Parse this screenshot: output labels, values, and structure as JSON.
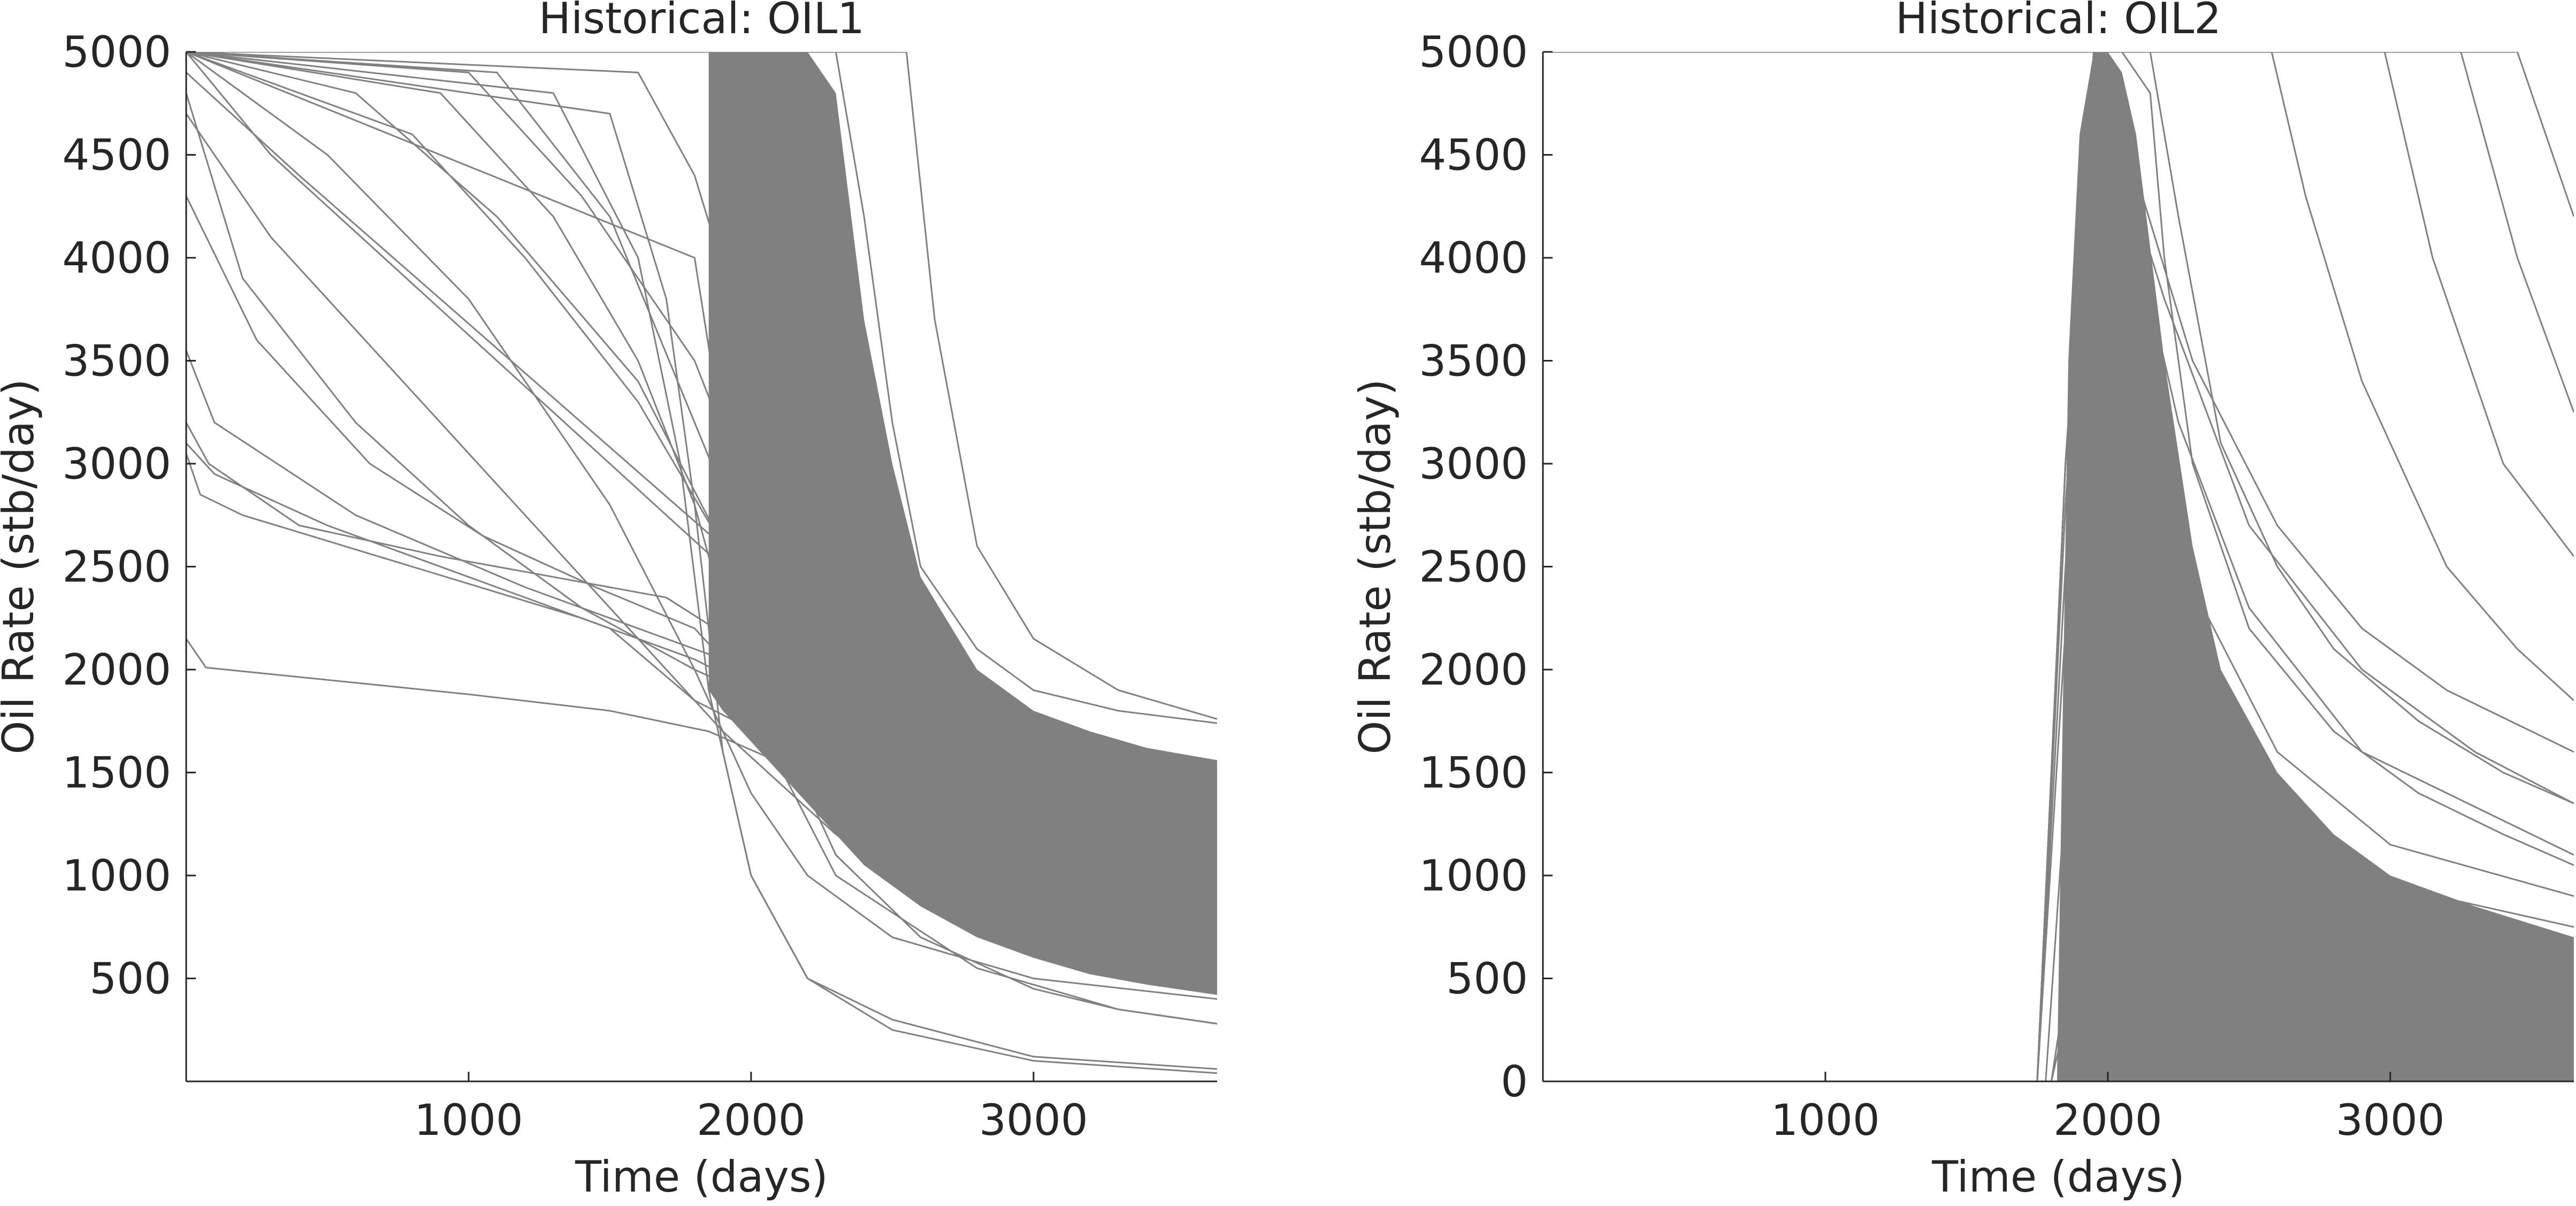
{
  "chart_data": [
    {
      "type": "line",
      "title": "Historical: OIL1",
      "xlabel": "Time (days)",
      "ylabel": "Oil Rate (stb/day)",
      "xlim": [
        0,
        3650
      ],
      "ylim": [
        0,
        5000
      ],
      "xticks": [
        1000,
        2000,
        3000
      ],
      "yticks": [
        500,
        1000,
        1500,
        2000,
        2500,
        3000,
        3500,
        4000,
        4500,
        5000
      ],
      "line_color": "#808080",
      "grid": false,
      "legend": "none",
      "dense_band": {
        "x": [
          1850,
          1900,
          2000,
          2100,
          2200,
          2300,
          2400,
          2500,
          2600,
          2800,
          3000,
          3200,
          3400,
          3650
        ],
        "upper": [
          5000,
          5000,
          5000,
          5000,
          5000,
          4800,
          3700,
          3000,
          2450,
          2000,
          1800,
          1700,
          1620,
          1560
        ],
        "lower": [
          1900,
          1800,
          1650,
          1500,
          1350,
          1200,
          1050,
          950,
          850,
          700,
          600,
          520,
          470,
          420
        ]
      },
      "series": [
        {
          "x": [
            0,
            2300,
            2400,
            2500,
            2600,
            2800,
            3000,
            3300,
            3650
          ],
          "values": [
            5000,
            5000,
            4200,
            3200,
            2500,
            2100,
            1900,
            1800,
            1740
          ]
        },
        {
          "x": [
            0,
            2550,
            2650,
            2800,
            3000,
            3300,
            3650
          ],
          "values": [
            5000,
            5000,
            3700,
            2600,
            2150,
            1900,
            1760
          ]
        },
        {
          "x": [
            0,
            1800,
            1950,
            2100,
            2300,
            2600,
            3000,
            3300,
            3650
          ],
          "values": [
            5000,
            4000,
            2700,
            1700,
            1100,
            700,
            450,
            350,
            280
          ]
        },
        {
          "x": [
            0,
            300,
            700,
            1100,
            1500,
            1900,
            2300,
            2700,
            3100,
            3650
          ],
          "values": [
            5000,
            4500,
            4000,
            3500,
            3000,
            2500,
            2000,
            1500,
            1000,
            500
          ]
        },
        {
          "x": [
            0,
            400,
            900,
            1400,
            1900,
            2400,
            2900,
            3400,
            3650
          ],
          "values": [
            4900,
            4400,
            3800,
            3200,
            2600,
            2000,
            1400,
            800,
            600
          ]
        },
        {
          "x": [
            0,
            500,
            1000,
            1500,
            1800,
            2000,
            2200,
            2500,
            3000,
            3650
          ],
          "values": [
            5000,
            4500,
            3800,
            2800,
            2000,
            1400,
            1000,
            700,
            500,
            400
          ]
        },
        {
          "x": [
            0,
            200,
            600,
            1000,
            1400,
            1800,
            2200,
            2600,
            3000,
            3650
          ],
          "values": [
            4800,
            3900,
            3200,
            2700,
            2300,
            2000,
            1750,
            1500,
            1300,
            1100
          ]
        },
        {
          "x": [
            0,
            800,
            1200,
            1600,
            1900,
            2100,
            2400,
            2800,
            3200,
            3650
          ],
          "values": [
            5000,
            4600,
            4000,
            3300,
            2600,
            1900,
            1200,
            800,
            600,
            500
          ]
        },
        {
          "x": [
            0,
            100,
            600,
            1200,
            1800,
            2400,
            3000,
            3650
          ],
          "values": [
            3550,
            3200,
            2750,
            2400,
            2100,
            1800,
            1550,
            1350
          ]
        },
        {
          "x": [
            0,
            100,
            500,
            1000,
            1500,
            1800,
            2300,
            3000,
            3650
          ],
          "values": [
            3100,
            2950,
            2700,
            2450,
            2200,
            1850,
            1500,
            1200,
            1000
          ]
        },
        {
          "x": [
            0,
            50,
            200,
            800,
            1400,
            1800,
            2300,
            3000,
            3650
          ],
          "values": [
            3050,
            2850,
            2750,
            2500,
            2250,
            2050,
            1700,
            1400,
            1200
          ]
        },
        {
          "x": [
            0,
            80,
            400,
            900,
            1300,
            1700,
            2100,
            2600,
            3100,
            3650
          ],
          "values": [
            3200,
            3000,
            2700,
            2550,
            2450,
            2350,
            2000,
            1500,
            1150,
            950
          ]
        },
        {
          "x": [
            0,
            70,
            500,
            1000,
            1500,
            1850,
            2100,
            2600,
            3000,
            3650
          ],
          "values": [
            2150,
            2010,
            1950,
            1880,
            1800,
            1700,
            1550,
            1250,
            1050,
            850
          ]
        },
        {
          "x": [
            0,
            300,
            700,
            1100,
            1500,
            1900,
            2300,
            2700,
            3100,
            3650
          ],
          "values": [
            4700,
            4100,
            3500,
            2900,
            2300,
            1700,
            1200,
            850,
            650,
            500
          ]
        },
        {
          "x": [
            0,
            250,
            650,
            1050,
            1450,
            1800,
            2000,
            2300,
            2700,
            3200,
            3650
          ],
          "values": [
            4300,
            3600,
            3000,
            2650,
            2400,
            2200,
            1900,
            1500,
            1100,
            800,
            650
          ]
        },
        {
          "x": [
            0,
            900,
            1300,
            1600,
            1800,
            2000,
            2300,
            2800,
            3300,
            3650
          ],
          "values": [
            5000,
            4800,
            4200,
            3500,
            2800,
            1800,
            1000,
            550,
            350,
            280
          ]
        },
        {
          "x": [
            0,
            1300,
            1600,
            1750,
            1850,
            2000,
            2200,
            2500,
            3000,
            3650
          ],
          "values": [
            5000,
            4800,
            4000,
            3000,
            1900,
            1000,
            500,
            300,
            120,
            60
          ]
        },
        {
          "x": [
            0,
            1500,
            1700,
            1800,
            1900,
            2000,
            2200,
            2500,
            3000,
            3650
          ],
          "values": [
            5000,
            4700,
            3800,
            2800,
            1600,
            1000,
            500,
            250,
            100,
            40
          ]
        },
        {
          "x": [
            0,
            600,
            1100,
            1600,
            1900,
            2200,
            2600,
            3000,
            3650
          ],
          "values": [
            5000,
            4800,
            4200,
            3400,
            2600,
            1800,
            1200,
            900,
            700
          ]
        },
        {
          "x": [
            0,
            1000,
            1400,
            1800,
            2000,
            2200,
            2500,
            3000,
            3650
          ],
          "values": [
            5000,
            4900,
            4300,
            3500,
            2800,
            2000,
            1300,
            800,
            550
          ]
        },
        {
          "x": [
            0,
            1100,
            1500,
            1800,
            2100,
            2400,
            2800,
            3300,
            3650
          ],
          "values": [
            5000,
            4900,
            4200,
            3200,
            2200,
            1500,
            1000,
            700,
            550
          ]
        },
        {
          "x": [
            0,
            1600,
            1800,
            2000,
            2200,
            2400,
            2700,
            3100,
            3650
          ],
          "values": [
            5000,
            4900,
            4400,
            3500,
            2500,
            1700,
            1100,
            750,
            500
          ]
        }
      ]
    },
    {
      "type": "line",
      "title": "Historical: OIL2",
      "xlabel": "Time (days)",
      "ylabel": "Oil Rate (stb/day)",
      "xlim": [
        0,
        3650
      ],
      "ylim": [
        0,
        5000
      ],
      "xticks": [
        1000,
        2000,
        3000
      ],
      "yticks": [
        0,
        500,
        1000,
        1500,
        2000,
        2500,
        3000,
        3500,
        4000,
        4500,
        5000
      ],
      "line_color": "#808080",
      "grid": false,
      "legend": "none",
      "dense_band": {
        "x": [
          1820,
          1860,
          1900,
          1950,
          2000,
          2050,
          2100,
          2200,
          2300,
          2400,
          2600,
          2800,
          3000,
          3300,
          3650
        ],
        "upper": [
          0,
          3500,
          4600,
          5000,
          5000,
          4900,
          4600,
          3500,
          2600,
          2000,
          1500,
          1200,
          1000,
          850,
          700
        ],
        "lower": [
          0,
          0,
          0,
          0,
          0,
          0,
          0,
          0,
          0,
          0,
          0,
          0,
          0,
          0,
          0
        ]
      },
      "series": [
        {
          "x": [
            0,
            1750,
            1850,
            1950,
            2050,
            2150,
            2200,
            2300,
            2500,
            2800,
            3100,
            3400,
            3650
          ],
          "values": [
            0,
            0,
            3000,
            5000,
            5000,
            4800,
            4000,
            3000,
            2200,
            1700,
            1400,
            1200,
            1050
          ]
        },
        {
          "x": [
            0,
            1750,
            1850,
            1950,
            2150,
            2250,
            2400,
            2600,
            2800,
            3100,
            3400,
            3650
          ],
          "values": [
            0,
            0,
            3000,
            5000,
            5000,
            4200,
            3100,
            2500,
            2100,
            1750,
            1500,
            1350
          ]
        },
        {
          "x": [
            0,
            2580,
            2700,
            2900,
            3200,
            3450,
            3650
          ],
          "values": [
            5000,
            5000,
            4300,
            3400,
            2500,
            2100,
            1850
          ]
        },
        {
          "x": [
            0,
            2980,
            3150,
            3400,
            3650
          ],
          "values": [
            5000,
            5000,
            4000,
            3000,
            2550
          ]
        },
        {
          "x": [
            0,
            3250,
            3450,
            3650
          ],
          "values": [
            5000,
            5000,
            4000,
            3250
          ]
        },
        {
          "x": [
            0,
            3450,
            3650
          ],
          "values": [
            5000,
            5000,
            4200
          ]
        },
        {
          "x": [
            0,
            1750,
            1850,
            1950,
            2100,
            2300,
            2600,
            2900,
            3200,
            3650
          ],
          "values": [
            0,
            0,
            3000,
            5000,
            4400,
            3500,
            2700,
            2200,
            1900,
            1600
          ]
        },
        {
          "x": [
            0,
            1750,
            1850,
            1950,
            2100,
            2300,
            2600,
            3000,
            3650
          ],
          "values": [
            0,
            0,
            2500,
            4600,
            3600,
            2400,
            1600,
            1150,
            900
          ]
        },
        {
          "x": [
            0,
            1750,
            1850,
            1950,
            2050,
            2250,
            2600,
            3000,
            3650
          ],
          "values": [
            0,
            0,
            2200,
            4200,
            3200,
            2000,
            1300,
            950,
            750
          ]
        },
        {
          "x": [
            0,
            1780,
            1850,
            1950,
            2100,
            2400,
            2900,
            3650
          ],
          "values": [
            0,
            0,
            1400,
            2400,
            1800,
            1200,
            800,
            600
          ]
        },
        {
          "x": [
            0,
            1800,
            1900,
            2000,
            2200,
            2600,
            3100,
            3650
          ],
          "values": [
            0,
            0,
            900,
            1500,
            1000,
            600,
            400,
            300
          ]
        },
        {
          "x": [
            0,
            1800,
            1900,
            2000,
            2300,
            2800,
            3650
          ],
          "values": [
            0,
            0,
            600,
            800,
            400,
            200,
            120
          ]
        },
        {
          "x": [
            0,
            1750,
            1850,
            1950,
            2100,
            2250,
            2500,
            2900,
            3650
          ],
          "values": [
            0,
            0,
            2800,
            4800,
            4100,
            3200,
            2300,
            1600,
            1100
          ]
        },
        {
          "x": [
            0,
            1750,
            1850,
            1950,
            2200,
            2500,
            2900,
            3300,
            3650
          ],
          "values": [
            0,
            0,
            3000,
            4900,
            3800,
            2700,
            2000,
            1600,
            1350
          ]
        }
      ]
    }
  ]
}
